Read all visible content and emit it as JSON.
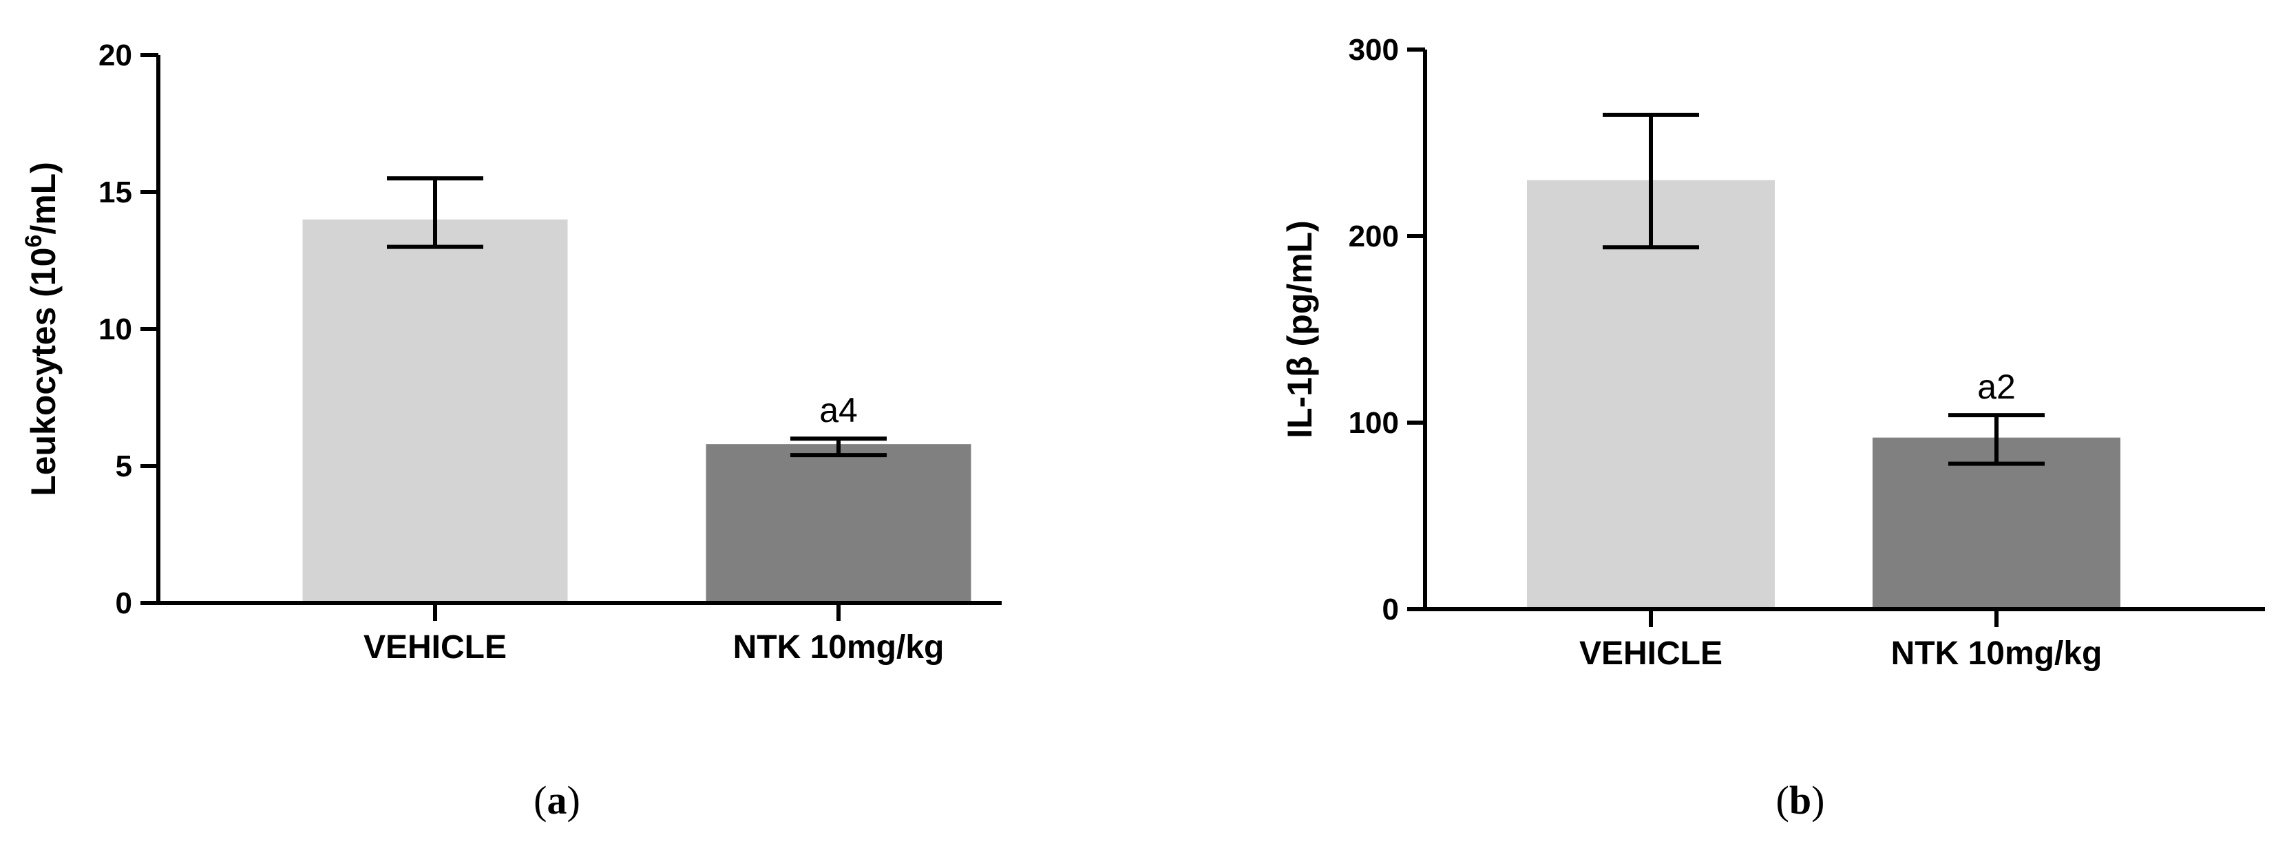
{
  "chart_data": [
    {
      "type": "bar",
      "panel_label": "a",
      "categories": [
        "VEHICLE",
        "NTK 10mg/kg"
      ],
      "values": [
        14.0,
        5.8
      ],
      "error_upper": [
        15.5,
        6.0
      ],
      "error_lower": [
        13.0,
        5.4
      ],
      "annotations": [
        "",
        "a4"
      ],
      "bar_colors": [
        "#d4d4d4",
        "#808080"
      ],
      "ylabel_main": "Leukocytes (10",
      "ylabel_sup": "6",
      "ylabel_tail": "/mL)",
      "ylim": [
        0,
        20
      ],
      "yticks": [
        0,
        5,
        10,
        15,
        20
      ],
      "ytick_labels": [
        "0",
        "5",
        "10",
        "15",
        "20"
      ]
    },
    {
      "type": "bar",
      "panel_label": "b",
      "categories": [
        "VEHICLE",
        "NTK 10mg/kg"
      ],
      "values": [
        230,
        92
      ],
      "error_upper": [
        265,
        104
      ],
      "error_lower": [
        194,
        78
      ],
      "annotations": [
        "",
        "a2"
      ],
      "bar_colors": [
        "#d4d4d4",
        "#808080"
      ],
      "ylabel_main": "IL-1β (pg/mL)",
      "ylim": [
        0,
        300
      ],
      "yticks": [
        0,
        100,
        200,
        300
      ],
      "ytick_labels": [
        "0",
        "100",
        "200",
        "300"
      ]
    }
  ]
}
